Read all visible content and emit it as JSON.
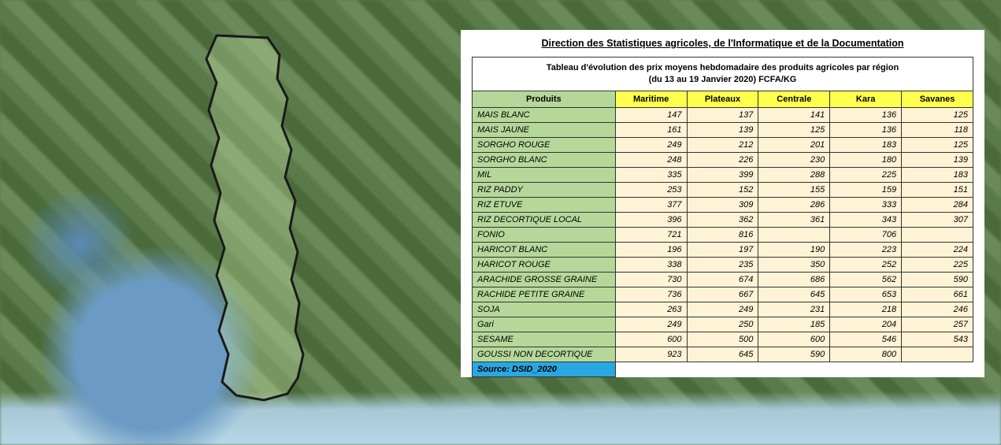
{
  "background": {
    "land_color": "#5a7a4a",
    "water_color": "#6b9bc4",
    "coast_color": "#b8d8e8"
  },
  "country_outline": {
    "stroke": "#1a1a1a",
    "stroke_width": 3,
    "fill_tint": "rgba(200,230,170,0.35)"
  },
  "panel": {
    "bg": "#ffffff"
  },
  "doc_title": "Direction des Statistiques agricoles, de l'Informatique et de la Documentation",
  "table": {
    "title_line1": "Tableau d'évolution des prix moyens hebdomadaire des produits agricoles par région",
    "title_line2": "(du 13 au 19 Janvier 2020)  FCFA/KG",
    "product_header": "Produits",
    "regions": [
      "Maritime",
      "Plateaux",
      "Centrale",
      "Kara",
      "Savanes"
    ],
    "header_region_bg": "#ffff4d",
    "header_prod_bg": "#b5d89a",
    "cell_value_bg": "#fff3d6",
    "cell_prod_bg": "#b5d89a",
    "border_color": "#333333",
    "font_size": 11,
    "rows": [
      {
        "p": "MAIS BLANC",
        "v": [
          "147",
          "137",
          "141",
          "136",
          "125"
        ]
      },
      {
        "p": "MAIS JAUNE",
        "v": [
          "161",
          "139",
          "125",
          "136",
          "118"
        ]
      },
      {
        "p": "SORGHO ROUGE",
        "v": [
          "249",
          "212",
          "201",
          "183",
          "125"
        ]
      },
      {
        "p": "SORGHO BLANC",
        "v": [
          "248",
          "226",
          "230",
          "180",
          "139"
        ]
      },
      {
        "p": "MIL",
        "v": [
          "335",
          "399",
          "288",
          "225",
          "183"
        ]
      },
      {
        "p": "RIZ PADDY",
        "v": [
          "253",
          "152",
          "155",
          "159",
          "151"
        ]
      },
      {
        "p": "RIZ ETUVE",
        "v": [
          "377",
          "309",
          "286",
          "333",
          "284"
        ]
      },
      {
        "p": "RIZ DECORTIQUE LOCAL",
        "v": [
          "396",
          "362",
          "361",
          "343",
          "307"
        ]
      },
      {
        "p": "FONIO",
        "v": [
          "721",
          "816",
          "",
          "706",
          ""
        ]
      },
      {
        "p": "HARICOT BLANC",
        "v": [
          "196",
          "197",
          "190",
          "223",
          "224"
        ]
      },
      {
        "p": "HARICOT ROUGE",
        "v": [
          "338",
          "235",
          "350",
          "252",
          "225"
        ]
      },
      {
        "p": "ARACHIDE GROSSE GRAINE",
        "v": [
          "730",
          "674",
          "686",
          "562",
          "590"
        ]
      },
      {
        "p": "RACHIDE PETITE GRAINE",
        "v": [
          "736",
          "667",
          "645",
          "653",
          "661"
        ]
      },
      {
        "p": "SOJA",
        "v": [
          "263",
          "249",
          "231",
          "218",
          "246"
        ]
      },
      {
        "p": "Gari",
        "v": [
          "249",
          "250",
          "185",
          "204",
          "257"
        ]
      },
      {
        "p": "SESAME",
        "v": [
          "600",
          "500",
          "600",
          "546",
          "543"
        ]
      },
      {
        "p": "GOUSSI NON DECORTIQUE",
        "v": [
          "923",
          "645",
          "590",
          "800",
          ""
        ]
      }
    ],
    "source_label": "Source: DSID_2020",
    "source_bg": "#29a7e1"
  }
}
